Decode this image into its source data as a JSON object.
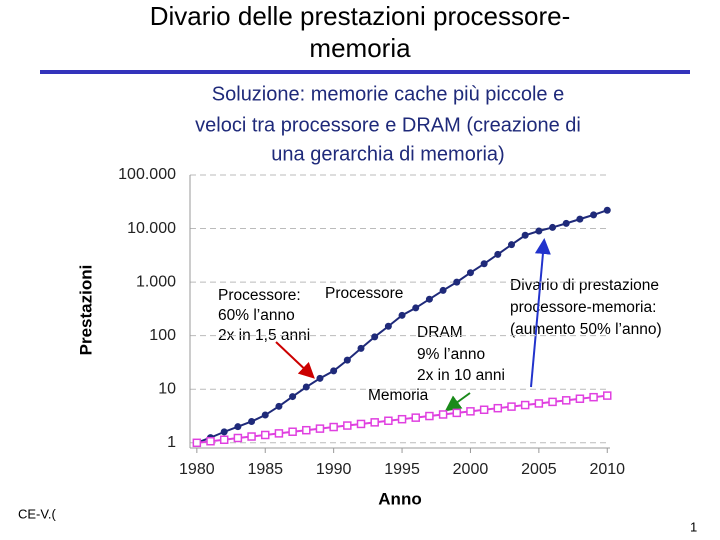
{
  "title_lines": [
    "Divario delle prestazioni processore-",
    "memoria"
  ],
  "subtitle_lines": [
    "Soluzione: memorie cache più piccole e",
    "veloci tra processore e DRAM (creazione di",
    "una gerarchia di memoria)"
  ],
  "chart_data": {
    "type": "line",
    "y_scale": "log",
    "grid": true,
    "y_label": "Prestazioni",
    "x_label": "Anno",
    "x": [
      1980,
      1981,
      1982,
      1983,
      1984,
      1985,
      1986,
      1987,
      1988,
      1989,
      1990,
      1991,
      1992,
      1993,
      1994,
      1995,
      1996,
      1997,
      1998,
      1999,
      2000,
      2001,
      2002,
      2003,
      2004,
      2005,
      2006,
      2007,
      2008,
      2009,
      2010
    ],
    "xlim": [
      1979.5,
      2010.2
    ],
    "xticks": [
      1980,
      1985,
      1990,
      1995,
      2000,
      2005,
      2010
    ],
    "ylim": [
      0.8,
      100000
    ],
    "yticks": [
      1,
      10,
      100,
      {
        "value": 1000,
        "label": "1.000"
      },
      {
        "value": 10000,
        "label": "10.000"
      },
      {
        "value": 100000,
        "label": "100.000"
      }
    ],
    "series": [
      {
        "name": "Processore",
        "color": "#1f2a7a",
        "marker": "circle",
        "values": [
          1,
          1.25,
          1.6,
          2,
          2.5,
          3.3,
          4.8,
          7.3,
          11,
          16,
          22,
          35,
          58,
          95,
          150,
          240,
          330,
          480,
          700,
          1000,
          1500,
          2200,
          3300,
          5000,
          7500,
          9000,
          10500,
          12500,
          15000,
          18000,
          22000
        ]
      },
      {
        "name": "Memoria",
        "color": "#e040e0",
        "marker": "square",
        "values": [
          1,
          1.07,
          1.14,
          1.23,
          1.31,
          1.4,
          1.5,
          1.61,
          1.72,
          1.84,
          1.97,
          2.1,
          2.25,
          2.41,
          2.58,
          2.76,
          2.95,
          3.16,
          3.38,
          3.62,
          3.87,
          4.14,
          4.43,
          4.74,
          5.07,
          5.43,
          5.81,
          6.21,
          6.65,
          7.11,
          7.61
        ]
      }
    ],
    "annotations": [
      {
        "color": "#cc0000",
        "lines": [
          "Processore:",
          "60% l’anno",
          "2x in 1,5 anni"
        ]
      },
      {
        "color": "#000000",
        "lines": [
          "DRAM",
          "9% l’anno",
          "2x in 10 anni"
        ]
      },
      {
        "color": "#000000",
        "lines": [
          "Divario di prestazione",
          "processore-memoria:",
          "(aumento 50% l’anno)"
        ]
      }
    ]
  },
  "footer": {
    "left": "CE-V.(",
    "page": "1"
  }
}
